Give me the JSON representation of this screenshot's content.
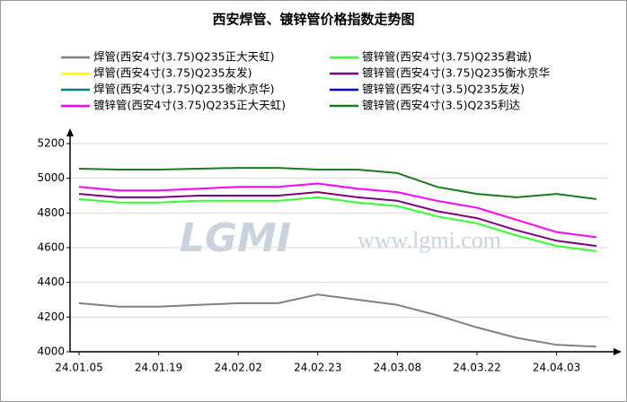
{
  "chart_data": {
    "type": "line",
    "title": "西安焊管、镀锌管价格指数走势图",
    "watermark": [
      "LGMI",
      "www.lgmi.com"
    ],
    "categories": [
      "24.01.05",
      null,
      "24.01.19",
      null,
      "24.02.02",
      null,
      "24.02.23",
      null,
      "24.03.08",
      null,
      "24.03.22",
      null,
      "24.04.03",
      null
    ],
    "ylim": [
      4000,
      5200
    ],
    "yticks": [
      4000,
      4200,
      4400,
      4600,
      4800,
      5000,
      5200
    ],
    "grid": true,
    "series": [
      {
        "name": "焊管(西安4寸(3.75)Q235正大天虹)",
        "color": "#808080",
        "values": [
          4280,
          4260,
          4260,
          4270,
          4280,
          4280,
          4330,
          4300,
          4270,
          4210,
          4140,
          4080,
          4040,
          4030
        ]
      },
      {
        "name": "镀锌管(西安4寸(3.75)Q235君诚)",
        "color": "#33ff33",
        "values": [
          4880,
          4860,
          4860,
          4870,
          4870,
          4870,
          4890,
          4860,
          4840,
          4780,
          4740,
          4670,
          4610,
          4580
        ]
      },
      {
        "name": "焊管(西安4寸(3.75)Q235友发)",
        "color": "#ffff00",
        "values": [
          null,
          null,
          null,
          null,
          null,
          null,
          null,
          null,
          null,
          null,
          null,
          null,
          null,
          null
        ]
      },
      {
        "name": "镀锌管(西安4寸(3.75)Q235衡水京华",
        "color": "#800080",
        "values": [
          4910,
          4890,
          4890,
          4900,
          4900,
          4900,
          4920,
          4890,
          4870,
          4810,
          4770,
          4700,
          4640,
          4610
        ]
      },
      {
        "name": "焊管(西安4寸(3.75)Q235衡水京华)",
        "color": "#008080",
        "values": [
          null,
          null,
          null,
          null,
          null,
          null,
          null,
          null,
          null,
          null,
          null,
          null,
          null,
          null
        ]
      },
      {
        "name": "镀锌管(西安4寸(3.5)Q235友发)",
        "color": "#0000cc",
        "values": [
          null,
          null,
          null,
          null,
          null,
          null,
          null,
          null,
          null,
          null,
          null,
          null,
          null,
          null
        ]
      },
      {
        "name": "镀锌管(西安4寸(3.75)Q235正大天虹)",
        "color": "#ff00ff",
        "values": [
          4950,
          4930,
          4930,
          4940,
          4950,
          4950,
          4970,
          4940,
          4920,
          4870,
          4830,
          4760,
          4690,
          4660
        ]
      },
      {
        "name": "镀锌管(西安4寸(3.5)Q235利达",
        "color": "#1a7a1a",
        "values": [
          5055,
          5050,
          5050,
          5055,
          5060,
          5060,
          5050,
          5050,
          5030,
          4950,
          4910,
          4890,
          4910,
          4880
        ]
      }
    ]
  }
}
